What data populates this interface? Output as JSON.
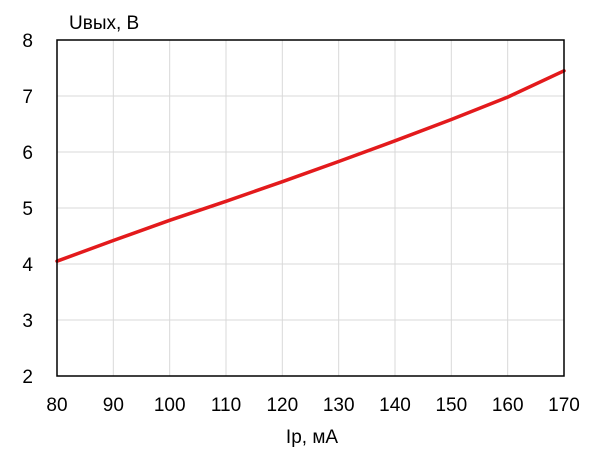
{
  "chart_data": {
    "type": "line",
    "xlabel": "Iр, мА",
    "ylabel": "Uвых, В",
    "xlim": [
      80,
      170
    ],
    "ylim": [
      2,
      8
    ],
    "x_ticks": [
      80,
      90,
      100,
      110,
      120,
      130,
      140,
      150,
      160,
      170
    ],
    "y_ticks": [
      2,
      3,
      4,
      5,
      6,
      7,
      8
    ],
    "grid": true,
    "series": [
      {
        "color": "#e31a1c",
        "x": [
          80,
          90,
          100,
          110,
          120,
          130,
          140,
          150,
          160,
          170
        ],
        "y": [
          4.05,
          4.42,
          4.78,
          5.12,
          5.47,
          5.83,
          6.2,
          6.58,
          6.98,
          7.45
        ]
      }
    ]
  }
}
